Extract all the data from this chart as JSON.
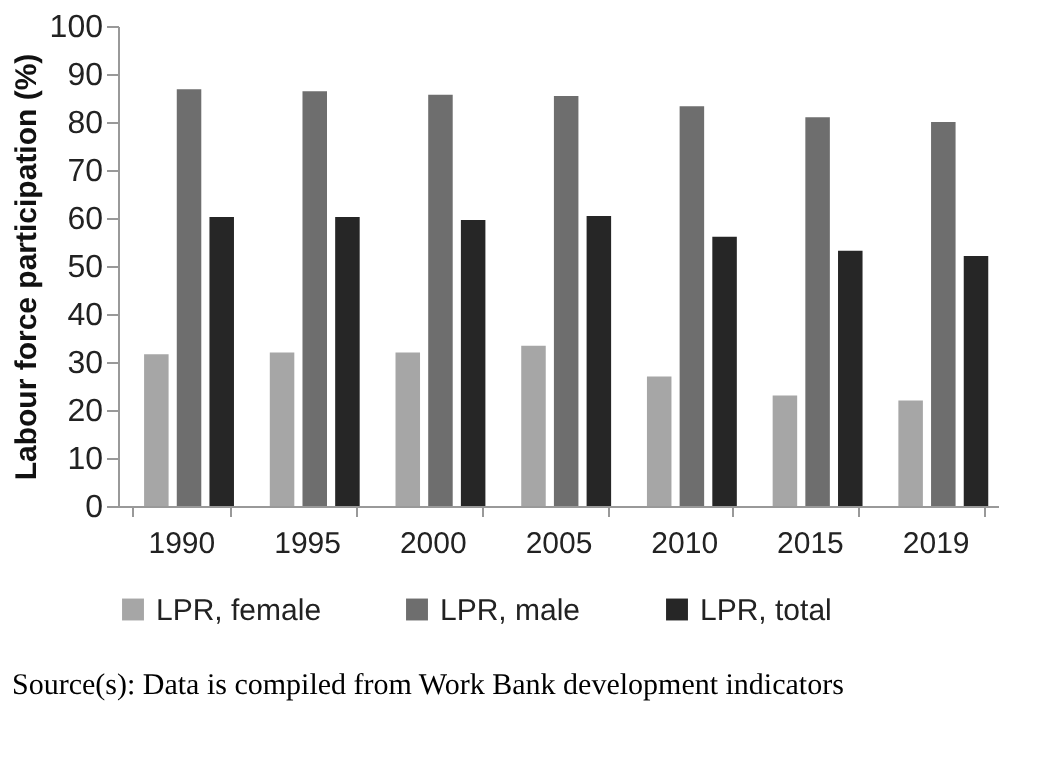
{
  "chart_data": {
    "type": "bar",
    "ylabel": "Labour force participation (%)",
    "categories": [
      "1990",
      "1995",
      "2000",
      "2005",
      "2010",
      "2015",
      "2019"
    ],
    "series": [
      {
        "name": "LPR, female",
        "color": "#a6a6a6",
        "values": [
          31.6,
          32,
          32,
          33.4,
          27,
          23,
          22
        ]
      },
      {
        "name": "LPR, male",
        "color": "#6e6e6e",
        "values": [
          86.8,
          86.4,
          85.7,
          85.4,
          83.3,
          81,
          80
        ]
      },
      {
        "name": "LPR, total",
        "color": "#262626",
        "values": [
          60.2,
          60.2,
          59.6,
          60.4,
          56.1,
          53.2,
          52.1
        ]
      }
    ],
    "ylim": [
      0,
      100
    ],
    "yticks": [
      0,
      10,
      20,
      30,
      40,
      50,
      60,
      70,
      80,
      90,
      100
    ],
    "grid": false,
    "legend": "bottom",
    "annotations": [
      "Source(s): Data is compiled from Work Bank development indicators"
    ]
  }
}
